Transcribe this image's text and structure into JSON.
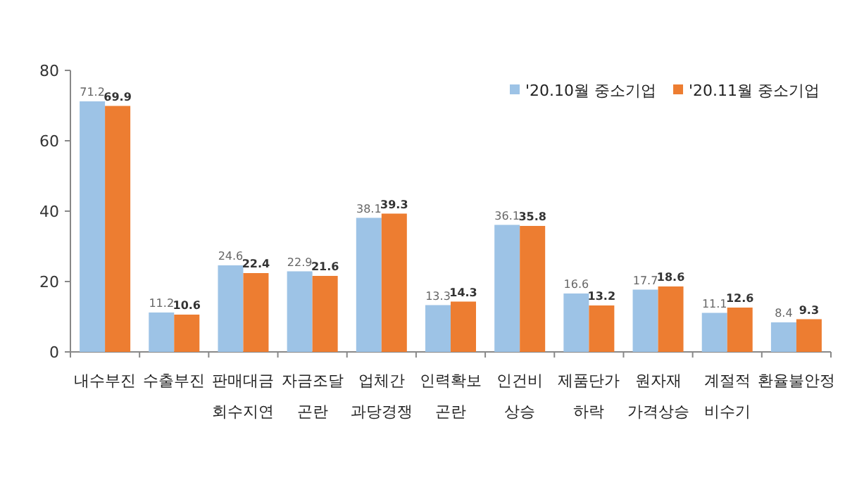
{
  "chart_data": {
    "type": "bar",
    "categories": [
      "내수부진",
      "수출부진",
      "판매대금\n회수지연",
      "자금조달\n곤란",
      "업체간\n과당경쟁",
      "인력확보\n곤란",
      "인건비\n상승",
      "제품단가\n하락",
      "원자재\n가격상승",
      "계절적\n비수기",
      "환율불안정"
    ],
    "series": [
      {
        "name": "'20.10월 중소기업",
        "color": "#9dc3e6",
        "values": [
          71.2,
          11.2,
          24.6,
          22.9,
          38.1,
          13.3,
          36.1,
          16.6,
          17.7,
          11.1,
          8.4
        ]
      },
      {
        "name": "'20.11월 중소기업",
        "color": "#ed7d31",
        "values": [
          69.9,
          10.6,
          22.4,
          21.6,
          39.3,
          14.3,
          35.8,
          13.2,
          18.6,
          12.6,
          9.3
        ]
      }
    ],
    "ylim": [
      0,
      80
    ],
    "yticks": [
      0,
      20,
      40,
      60,
      80
    ],
    "grid": false,
    "legend": "top right",
    "data_labels": true
  }
}
